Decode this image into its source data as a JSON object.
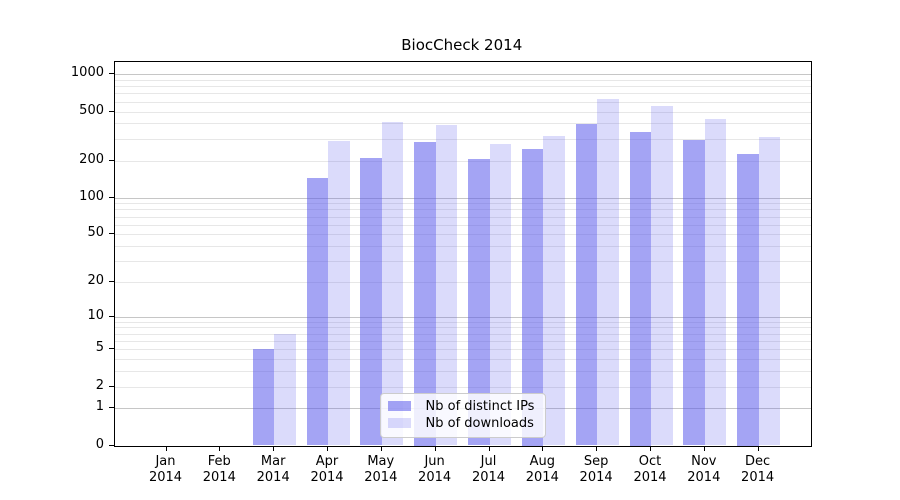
{
  "figure": {
    "title": "BiocCheck 2014"
  },
  "chart_data": {
    "type": "bar",
    "title": "BiocCheck 2014",
    "categories": [
      "Jan",
      "Feb",
      "Mar",
      "Apr",
      "May",
      "Jun",
      "Jul",
      "Aug",
      "Sep",
      "Oct",
      "Nov",
      "Dec"
    ],
    "category_year": "2014",
    "series": [
      {
        "name": "Nb of distinct IPs",
        "color": "#5a5aeb",
        "opacity": 0.55,
        "values": [
          0,
          0,
          5,
          144,
          209,
          283,
          207,
          248,
          399,
          341,
          294,
          226
        ]
      },
      {
        "name": "Nb of downloads",
        "color": "#5a5aeb",
        "opacity": 0.22,
        "values": [
          0,
          0,
          7,
          287,
          410,
          390,
          273,
          316,
          635,
          550,
          433,
          312
        ]
      }
    ],
    "y_axis": {
      "scale": "log1p",
      "ticks": [
        0,
        1,
        2,
        5,
        10,
        20,
        50,
        100,
        200,
        500,
        1000
      ],
      "major_grid_ticks": [
        1,
        10,
        100,
        1000
      ]
    },
    "grid": {
      "show": true,
      "which": "both",
      "major_color": "#c6c6c6",
      "minor_color": "#e7e7e7"
    },
    "legend": {
      "position": "inside-bottom-center"
    },
    "colors": {
      "background": "#ffffff",
      "axis": "#000000",
      "bar_base": "#5a5aeb"
    }
  }
}
